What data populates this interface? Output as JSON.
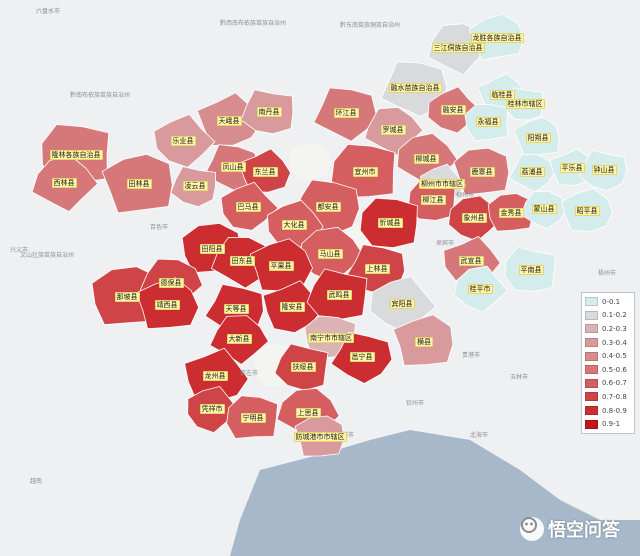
{
  "colors": {
    "sea": "#a7b8cb",
    "land": "#f2f2ee",
    "bins": [
      "#d5ecec",
      "#d9dadb",
      "#dcb3b5",
      "#d89a9c",
      "#d78c8e",
      "#d6787a",
      "#d45e60",
      "#cf4547",
      "#cb2d31",
      "#c2161b"
    ]
  },
  "legend": {
    "items": [
      "0-0.1",
      "0.1-0.2",
      "0.2-0.3",
      "0.3-0.4",
      "0.4-0.5",
      "0.5-0.6",
      "0.6-0.7",
      "0.7-0.8",
      "0.8-0.9",
      "0.9-1"
    ]
  },
  "basemap_labels": [
    "六盘水市",
    "黔西南布依族苗族自治州",
    "黔南布依族苗族自治州",
    "黔东南苗族侗族自治州",
    "兴义市",
    "文山壮族苗族自治州",
    "百色市",
    "崇左市",
    "北海市",
    "防城港市",
    "钦州市",
    "玉林市",
    "梧州市",
    "贵港市",
    "越南",
    "柳州市",
    "来宾市"
  ],
  "counties": [
    {
      "name": "三江侗族自治县",
      "bin": 1
    },
    {
      "name": "龙胜各族自治县",
      "bin": 0
    },
    {
      "name": "融水苗族自治县",
      "bin": 1
    },
    {
      "name": "临桂县",
      "bin": 0
    },
    {
      "name": "桂林市辖区",
      "bin": 0
    },
    {
      "name": "融安县",
      "bin": 5
    },
    {
      "name": "永福县",
      "bin": 0
    },
    {
      "name": "罗城县",
      "bin": 3
    },
    {
      "name": "阳朔县",
      "bin": 0
    },
    {
      "name": "环江县",
      "bin": 5
    },
    {
      "name": "天峨县",
      "bin": 4
    },
    {
      "name": "南丹县",
      "bin": 3
    },
    {
      "name": "乐业县",
      "bin": 3
    },
    {
      "name": "隆林各族自治县",
      "bin": 5
    },
    {
      "name": "西林县",
      "bin": 5
    },
    {
      "name": "田林县",
      "bin": 5
    },
    {
      "name": "凤山县",
      "bin": 5
    },
    {
      "name": "东兰县",
      "bin": 7
    },
    {
      "name": "凌云县",
      "bin": 3
    },
    {
      "name": "巴马县",
      "bin": 6
    },
    {
      "name": "宜州市",
      "bin": 6
    },
    {
      "name": "柳城县",
      "bin": 5
    },
    {
      "name": "鹿寨县",
      "bin": 5
    },
    {
      "name": "荔浦县",
      "bin": 0
    },
    {
      "name": "平乐县",
      "bin": 0
    },
    {
      "name": "钟山县",
      "bin": 0
    },
    {
      "name": "柳州市市辖区",
      "bin": 1
    },
    {
      "name": "柳江县",
      "bin": 6
    },
    {
      "name": "象州县",
      "bin": 7
    },
    {
      "name": "金秀县",
      "bin": 6
    },
    {
      "name": "蒙山县",
      "bin": 0
    },
    {
      "name": "昭平县",
      "bin": 0
    },
    {
      "name": "都安县",
      "bin": 6
    },
    {
      "name": "大化县",
      "bin": 6
    },
    {
      "name": "忻城县",
      "bin": 8
    },
    {
      "name": "马山县",
      "bin": 6
    },
    {
      "name": "田阳县",
      "bin": 8
    },
    {
      "name": "田东县",
      "bin": 8
    },
    {
      "name": "平果县",
      "bin": 8
    },
    {
      "name": "上林县",
      "bin": 7
    },
    {
      "name": "武宣县",
      "bin": 5
    },
    {
      "name": "平南县",
      "bin": 0
    },
    {
      "name": "桂平市",
      "bin": 0
    },
    {
      "name": "那坡县",
      "bin": 7
    },
    {
      "name": "德保县",
      "bin": 7
    },
    {
      "name": "靖西县",
      "bin": 8
    },
    {
      "name": "天等县",
      "bin": 8
    },
    {
      "name": "隆安县",
      "bin": 8
    },
    {
      "name": "武鸣县",
      "bin": 8
    },
    {
      "name": "宾阳县",
      "bin": 1
    },
    {
      "name": "南宁市市辖区",
      "bin": 2
    },
    {
      "name": "大新县",
      "bin": 8
    },
    {
      "name": "横县",
      "bin": 3
    },
    {
      "name": "邕宁县",
      "bin": 8
    },
    {
      "name": "龙州县",
      "bin": 8
    },
    {
      "name": "扶绥县",
      "bin": 7
    },
    {
      "name": "凭祥市",
      "bin": 7
    },
    {
      "name": "宁明县",
      "bin": 6
    },
    {
      "name": "上思县",
      "bin": 6
    },
    {
      "name": "防城港市市辖区",
      "bin": 3
    }
  ],
  "watermark": {
    "text": "悟空问答"
  }
}
